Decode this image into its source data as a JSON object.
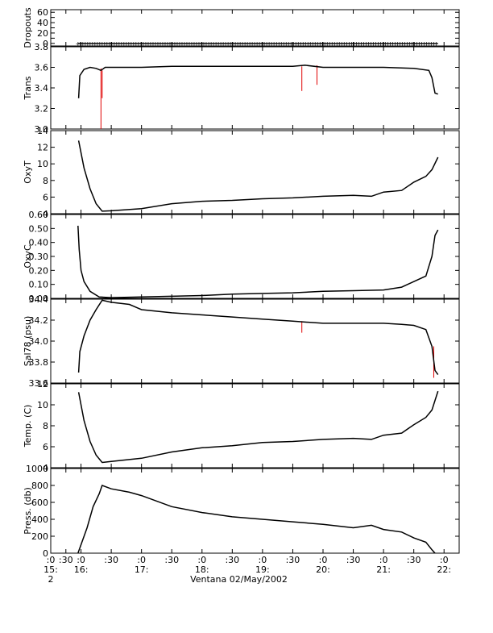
{
  "chart_data": {
    "type": "line",
    "xlabel": "Ventana 02/May/2002",
    "x_ticks": [
      {
        "t": 15.5,
        "top": ":0",
        "mid": "15:",
        "bot": "2"
      },
      {
        "t": 15.75,
        "top": ":30",
        "mid": "",
        "bot": ""
      },
      {
        "t": 16.0,
        "top": ":0",
        "mid": "16:",
        "bot": ""
      },
      {
        "t": 16.5,
        "top": ":30",
        "mid": "",
        "bot": ""
      },
      {
        "t": 17.0,
        "top": ":0",
        "mid": "17:",
        "bot": ""
      },
      {
        "t": 17.5,
        "top": ":30",
        "mid": "",
        "bot": ""
      },
      {
        "t": 18.0,
        "top": ":0",
        "mid": "18:",
        "bot": ""
      },
      {
        "t": 18.5,
        "top": ":30",
        "mid": "",
        "bot": ""
      },
      {
        "t": 19.0,
        "top": ":0",
        "mid": "19:",
        "bot": ""
      },
      {
        "t": 19.5,
        "top": ":30",
        "mid": "",
        "bot": ""
      },
      {
        "t": 20.0,
        "top": ":0",
        "mid": "20:",
        "bot": ""
      },
      {
        "t": 20.5,
        "top": ":30",
        "mid": "",
        "bot": ""
      },
      {
        "t": 21.0,
        "top": ":0",
        "mid": "21:",
        "bot": ""
      },
      {
        "t": 21.5,
        "top": ":30",
        "mid": "",
        "bot": ""
      },
      {
        "t": 22.0,
        "top": ":0",
        "mid": "22:",
        "bot": ""
      }
    ],
    "xlim": [
      15.5,
      22.25
    ],
    "panels": [
      {
        "name": "dropouts",
        "ylabel": "Dropouts",
        "ylim": [
          -5,
          65
        ],
        "yticks": [
          0,
          10,
          20,
          30,
          40,
          50,
          60
        ],
        "ytick_labels": [
          "0",
          "",
          "20",
          "",
          "40",
          "",
          "60"
        ],
        "x": [
          15.95,
          21.9
        ],
        "y": [
          0,
          0
        ],
        "markers": true
      },
      {
        "name": "trans",
        "ylabel": "Trans",
        "ylim": [
          3.0,
          3.8
        ],
        "yticks": [
          3.0,
          3.2,
          3.4,
          3.6,
          3.8
        ],
        "ytick_labels": [
          "3.0",
          "3.2",
          "3.4",
          "3.6",
          "3.8"
        ],
        "x": [
          15.96,
          15.98,
          16.05,
          16.15,
          16.25,
          16.33,
          16.4,
          16.6,
          17.0,
          17.5,
          18.0,
          18.5,
          19.0,
          19.5,
          19.7,
          20.0,
          20.5,
          21.0,
          21.5,
          21.75,
          21.8,
          21.85,
          21.9
        ],
        "y": [
          3.3,
          3.52,
          3.58,
          3.6,
          3.59,
          3.57,
          3.6,
          3.6,
          3.6,
          3.61,
          3.61,
          3.61,
          3.61,
          3.61,
          3.62,
          3.6,
          3.6,
          3.6,
          3.59,
          3.57,
          3.5,
          3.35,
          3.34
        ],
        "spikes": [
          {
            "x": 16.33,
            "y": 3.0
          },
          {
            "x": 16.35,
            "y": 3.3
          },
          {
            "x": 19.65,
            "y": 3.37
          },
          {
            "x": 19.9,
            "y": 3.43
          }
        ]
      },
      {
        "name": "oxyt",
        "ylabel": "OxyT",
        "ylim": [
          4,
          14
        ],
        "yticks": [
          4,
          6,
          8,
          10,
          12,
          14
        ],
        "ytick_labels": [
          "4",
          "6",
          "8",
          "10",
          "12",
          "14"
        ],
        "x": [
          15.96,
          16.05,
          16.15,
          16.25,
          16.35,
          16.5,
          17.0,
          17.5,
          18.0,
          18.5,
          19.0,
          19.5,
          20.0,
          20.5,
          20.8,
          21.0,
          21.3,
          21.5,
          21.7,
          21.8,
          21.9
        ],
        "y": [
          12.8,
          9.5,
          7.0,
          5.2,
          4.3,
          4.35,
          4.6,
          5.2,
          5.5,
          5.6,
          5.8,
          5.9,
          6.1,
          6.2,
          6.1,
          6.6,
          6.8,
          7.8,
          8.5,
          9.3,
          10.8
        ]
      },
      {
        "name": "oxyc",
        "ylabel": "OxyC",
        "ylim": [
          0,
          0.6
        ],
        "yticks": [
          0,
          0.1,
          0.2,
          0.3,
          0.4,
          0.5,
          0.6
        ],
        "ytick_labels": [
          "0.00",
          "0.10",
          "0.20",
          "0.30",
          "0.40",
          "0.50",
          "0.60"
        ],
        "x": [
          15.95,
          15.97,
          16.0,
          16.05,
          16.15,
          16.3,
          16.5,
          17.0,
          17.5,
          18.0,
          18.5,
          19.0,
          19.5,
          20.0,
          20.5,
          21.0,
          21.3,
          21.5,
          21.7,
          21.8,
          21.85,
          21.9
        ],
        "y": [
          0.52,
          0.35,
          0.2,
          0.12,
          0.05,
          0.01,
          0.005,
          0.01,
          0.015,
          0.02,
          0.03,
          0.035,
          0.04,
          0.05,
          0.055,
          0.06,
          0.08,
          0.12,
          0.16,
          0.3,
          0.45,
          0.49
        ]
      },
      {
        "name": "sal78",
        "ylabel": "Sal78 (psu)",
        "ylim": [
          33.6,
          34.4
        ],
        "yticks": [
          33.6,
          33.8,
          34.0,
          34.2,
          34.4
        ],
        "ytick_labels": [
          "33.6",
          "33.8",
          "34.0",
          "34.2",
          "34.4"
        ],
        "x": [
          15.96,
          15.98,
          16.05,
          16.15,
          16.25,
          16.35,
          16.5,
          16.8,
          17.0,
          17.5,
          18.0,
          18.5,
          19.0,
          19.5,
          20.0,
          20.5,
          21.0,
          21.3,
          21.5,
          21.7,
          21.8,
          21.85,
          21.9
        ],
        "y": [
          33.7,
          33.9,
          34.05,
          34.2,
          34.3,
          34.39,
          34.37,
          34.35,
          34.3,
          34.27,
          34.25,
          34.23,
          34.21,
          34.19,
          34.17,
          34.17,
          34.17,
          34.16,
          34.15,
          34.11,
          33.95,
          33.72,
          33.68
        ],
        "spikes": [
          {
            "x": 19.65,
            "y": 34.08
          },
          {
            "x": 21.83,
            "y": 33.65
          }
        ]
      },
      {
        "name": "temp",
        "ylabel": "Temp. (C)",
        "ylim": [
          4,
          12
        ],
        "yticks": [
          4,
          6,
          8,
          10,
          12
        ],
        "ytick_labels": [
          "4",
          "6",
          "8",
          "10",
          "12"
        ],
        "x": [
          15.96,
          16.05,
          16.15,
          16.25,
          16.35,
          16.5,
          17.0,
          17.5,
          18.0,
          18.5,
          19.0,
          19.5,
          20.0,
          20.5,
          20.8,
          21.0,
          21.3,
          21.5,
          21.7,
          21.8,
          21.9
        ],
        "y": [
          11.2,
          8.5,
          6.5,
          5.2,
          4.5,
          4.6,
          4.9,
          5.5,
          5.9,
          6.1,
          6.4,
          6.5,
          6.7,
          6.8,
          6.7,
          7.1,
          7.3,
          8.1,
          8.8,
          9.5,
          11.3
        ]
      },
      {
        "name": "press",
        "ylabel": "Press. (db)",
        "ylim": [
          0,
          1000
        ],
        "yticks": [
          0,
          200,
          400,
          600,
          800,
          1000
        ],
        "ytick_labels": [
          "0",
          "200",
          "400",
          "600",
          "800",
          "1000"
        ],
        "x": [
          15.95,
          16.1,
          16.2,
          16.3,
          16.35,
          16.5,
          16.8,
          17.0,
          17.5,
          18.0,
          18.5,
          19.0,
          19.5,
          20.0,
          20.5,
          20.8,
          21.0,
          21.3,
          21.5,
          21.7,
          21.8,
          21.85
        ],
        "y": [
          0,
          300,
          550,
          700,
          800,
          760,
          720,
          680,
          550,
          480,
          430,
          400,
          370,
          340,
          300,
          330,
          280,
          250,
          180,
          130,
          40,
          0
        ]
      }
    ]
  }
}
